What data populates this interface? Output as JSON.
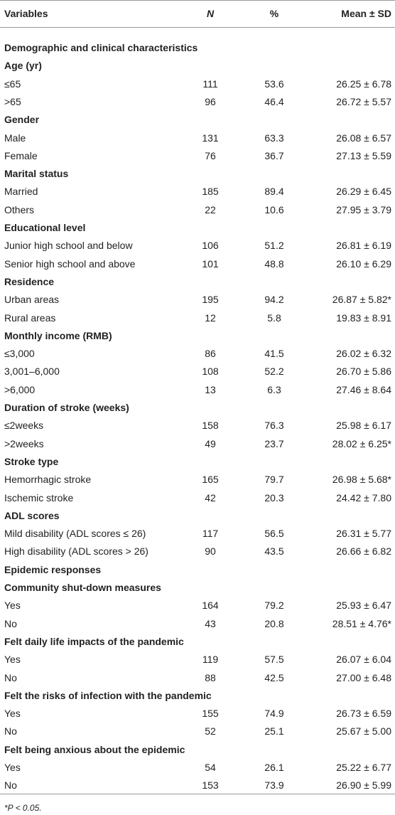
{
  "table": {
    "header": [
      "Variables",
      "N",
      "%",
      "Mean ± SD"
    ],
    "rows": [
      [
        "Demographic and clinical characteristics"
      ],
      [
        "Age (yr)"
      ],
      [
        "≤65",
        111,
        53.6,
        "26.25 ± 6.78"
      ],
      [
        ">65",
        96,
        46.4,
        "26.72 ± 5.57"
      ],
      [
        "Gender"
      ],
      [
        "Male",
        131,
        63.3,
        "26.08 ± 6.57"
      ],
      [
        "Female",
        76,
        36.7,
        "27.13 ± 5.59"
      ],
      [
        "Marital status"
      ],
      [
        "Married",
        185,
        89.4,
        "26.29 ± 6.45"
      ],
      [
        "Others",
        22,
        10.6,
        "27.95 ± 3.79"
      ],
      [
        "Educational level"
      ],
      [
        "Junior high school and below",
        106,
        51.2,
        "26.81 ± 6.19"
      ],
      [
        "Senior high school and above",
        101,
        48.8,
        "26.10 ± 6.29"
      ],
      [
        "Residence"
      ],
      [
        "Urban areas",
        195,
        94.2,
        "26.87 ± 5.82*"
      ],
      [
        "Rural areas",
        12,
        5.8,
        "19.83 ± 8.91"
      ],
      [
        "Monthly income (RMB)"
      ],
      [
        "≤3,000",
        86,
        41.5,
        "26.02 ± 6.32"
      ],
      [
        "3,001–6,000",
        108,
        52.2,
        "26.70 ± 5.86"
      ],
      [
        ">6,000",
        13,
        6.3,
        "27.46 ± 8.64"
      ],
      [
        "Duration of stroke (weeks)"
      ],
      [
        "≤2weeks",
        158,
        76.3,
        "25.98 ± 6.17"
      ],
      [
        ">2weeks",
        49,
        23.7,
        "28.02 ± 6.25*"
      ],
      [
        "Stroke type"
      ],
      [
        "Hemorrhagic stroke",
        165,
        79.7,
        "26.98 ± 5.68*"
      ],
      [
        "Ischemic stroke",
        42,
        20.3,
        "24.42 ± 7.80"
      ],
      [
        "ADL scores"
      ],
      [
        "Mild disability (ADL scores ≤ 26)",
        117,
        56.5,
        "26.31 ± 5.77"
      ],
      [
        "High disability (ADL scores > 26)",
        90,
        43.5,
        "26.66 ± 6.82"
      ],
      [
        "Epidemic responses"
      ],
      [
        "Community shut-down measures"
      ],
      [
        "Yes",
        164,
        79.2,
        "25.93 ± 6.47"
      ],
      [
        "No",
        43,
        20.8,
        "28.51 ± 4.76*"
      ],
      [
        "Felt daily life impacts of the pandemic"
      ],
      [
        "Yes",
        119,
        57.5,
        "26.07 ± 6.04"
      ],
      [
        "No",
        88,
        42.5,
        "27.00 ± 6.48"
      ],
      [
        "Felt the risks of infection with the pandemic"
      ],
      [
        "Yes",
        155,
        74.9,
        "26.73 ± 6.59"
      ],
      [
        "No",
        52,
        25.1,
        "25.67 ± 5.00"
      ],
      [
        "Felt being anxious about the epidemic"
      ],
      [
        "Yes",
        54,
        26.1,
        "25.22 ± 6.77"
      ],
      [
        "No",
        153,
        73.9,
        "26.90 ± 5.99"
      ]
    ],
    "footnote": "*P < 0.05."
  }
}
